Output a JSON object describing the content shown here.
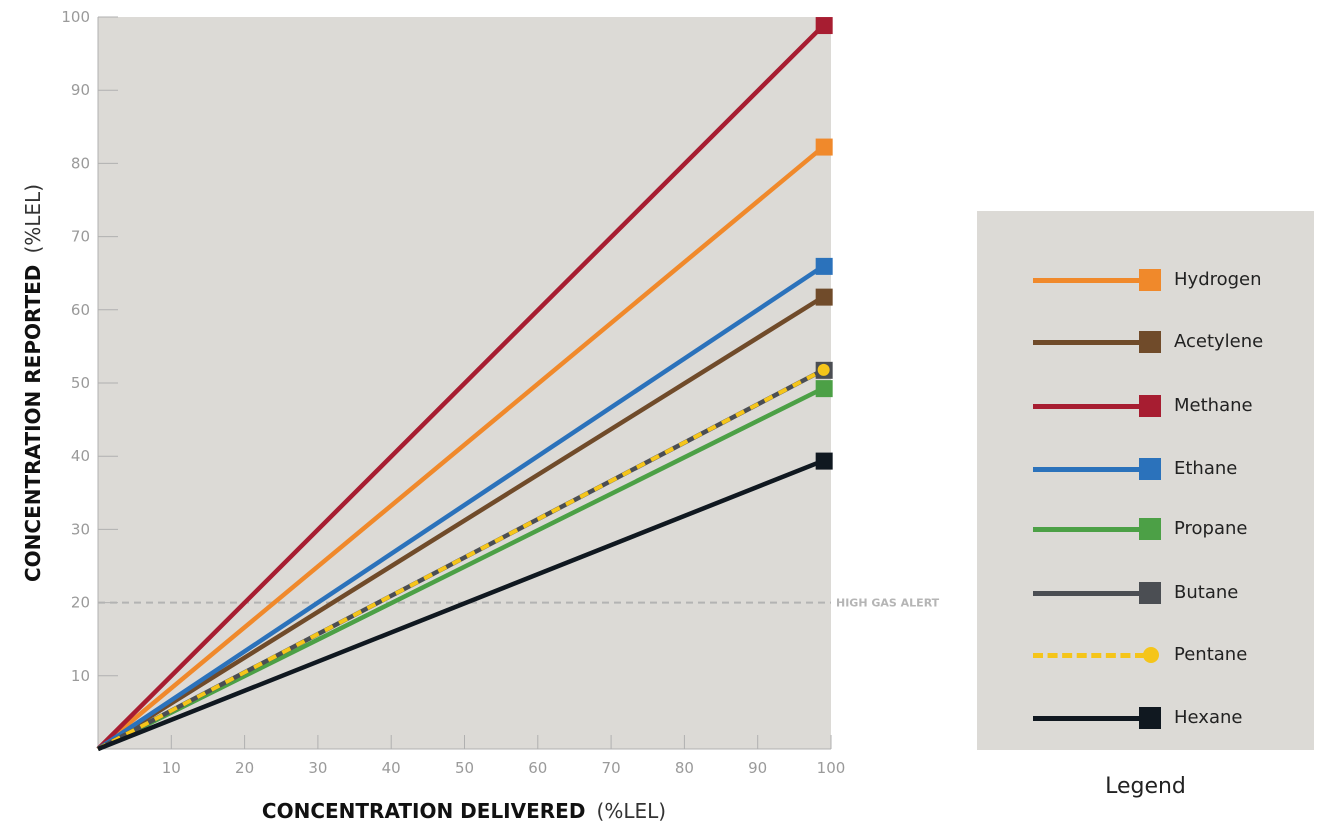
{
  "chart_data": {
    "type": "line",
    "xlabel": "CONCENTRATION DELIVERED",
    "xlabel_unit": "(%LEL)",
    "ylabel": "CONCENTRATION REPORTED",
    "ylabel_unit": "(%LEL)",
    "xlim": [
      0,
      100
    ],
    "ylim": [
      0,
      100
    ],
    "x_ticks": [
      10,
      20,
      30,
      40,
      50,
      60,
      70,
      80,
      90,
      100
    ],
    "y_ticks": [
      10,
      20,
      30,
      40,
      50,
      60,
      70,
      80,
      90,
      100
    ],
    "reference_line": {
      "y": 20,
      "label": "HIGH GAS ALERT"
    },
    "plot_background": "#dcdad6",
    "series": [
      {
        "name": "Hydrogen",
        "color": "#f0892b",
        "marker": "square",
        "dashed": false,
        "x": [
          0,
          99
        ],
        "y": [
          0,
          82.3
        ]
      },
      {
        "name": "Acetylene",
        "color": "#704b2a",
        "marker": "square",
        "dashed": false,
        "x": [
          0,
          99
        ],
        "y": [
          0,
          61.8
        ]
      },
      {
        "name": "Methane",
        "color": "#a71d31",
        "marker": "square",
        "dashed": false,
        "x": [
          0,
          99
        ],
        "y": [
          0,
          98.9
        ]
      },
      {
        "name": "Ethane",
        "color": "#2b72bb",
        "marker": "square",
        "dashed": false,
        "x": [
          0,
          99
        ],
        "y": [
          0,
          66
        ]
      },
      {
        "name": "Propane",
        "color": "#4ca046",
        "marker": "square",
        "dashed": false,
        "x": [
          0,
          99
        ],
        "y": [
          0,
          49.3
        ]
      },
      {
        "name": "Butane",
        "color": "#4b4e53",
        "marker": "square",
        "dashed": false,
        "x": [
          0,
          99
        ],
        "y": [
          0,
          51.8
        ]
      },
      {
        "name": "Pentane",
        "color": "#f5c51a",
        "marker": "circle",
        "dashed": true,
        "x": [
          0,
          99
        ],
        "y": [
          0,
          51.8
        ]
      },
      {
        "name": "Hexane",
        "color": "#101820",
        "marker": "square",
        "dashed": false,
        "x": [
          0,
          99
        ],
        "y": [
          0,
          39.4
        ]
      }
    ],
    "legend_placement": "right"
  },
  "legend": {
    "caption": "Legend"
  }
}
